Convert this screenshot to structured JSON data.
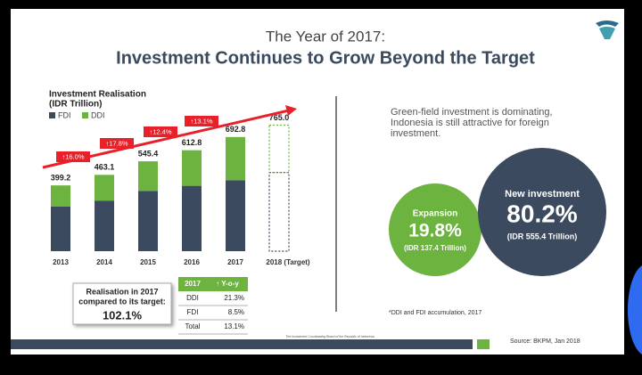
{
  "header": {
    "title_line1": "The Year of 2017:",
    "title_line2": "Investment Continues to Grow Beyond the Target"
  },
  "chart_data": {
    "type": "bar",
    "stacked": true,
    "title_lines": [
      "Investment Realisation",
      "(IDR Trillion)"
    ],
    "categories": [
      "2013",
      "2014",
      "2015",
      "2016",
      "2017",
      "2018 (Target)"
    ],
    "series": [
      {
        "name": "FDI",
        "color": "#3b4a5e",
        "values": [
          270.4,
          307.0,
          365.9,
          396.6,
          430.5,
          477.4
        ]
      },
      {
        "name": "DDI",
        "color": "#6cb33f",
        "values": [
          128.8,
          156.1,
          179.5,
          216.2,
          262.3,
          287.6
        ]
      }
    ],
    "value_labels": [
      "399.2",
      "463.1",
      "545.4",
      "612.8",
      "692.8",
      "765.0"
    ],
    "target_index": 5,
    "growth": [
      16.0,
      17.8,
      12.4,
      13.1
    ],
    "growth_labels": [
      "↑16.0%",
      "↑17.8%",
      "↑12.4%",
      "↑13.1%"
    ],
    "growth_color": "#e8202a",
    "ylim": [
      0,
      800
    ]
  },
  "realisation_box": {
    "text_lines": [
      "Realisation in 2017",
      "compared to its target:"
    ],
    "value": "102.1%"
  },
  "table": {
    "header": [
      "2017",
      "↑ Y-o-y"
    ],
    "rows": [
      [
        "DDI",
        "21.3%"
      ],
      [
        "FDI",
        "8.5%"
      ],
      [
        "Total",
        "13.1%"
      ]
    ]
  },
  "right_text": [
    "Green-field investment is dominating,",
    "Indonesia is still attractive for foreign",
    "investment."
  ],
  "circles": [
    {
      "label": "Expansion",
      "percent": "19.8%",
      "amount": "(IDR 137.4 Trillion)",
      "color": "#6cb33f"
    },
    {
      "label": "New investment",
      "percent": "80.2%",
      "amount": "(IDR 555.4 Trillion)",
      "color": "#3b4a5e"
    }
  ],
  "footnote": "*DDI and FDI accumulation, 2017",
  "footer_org": "The Investment Coordinating Board of the Republic of Indonesia",
  "source": "Source: BKPM, Jan 2018"
}
